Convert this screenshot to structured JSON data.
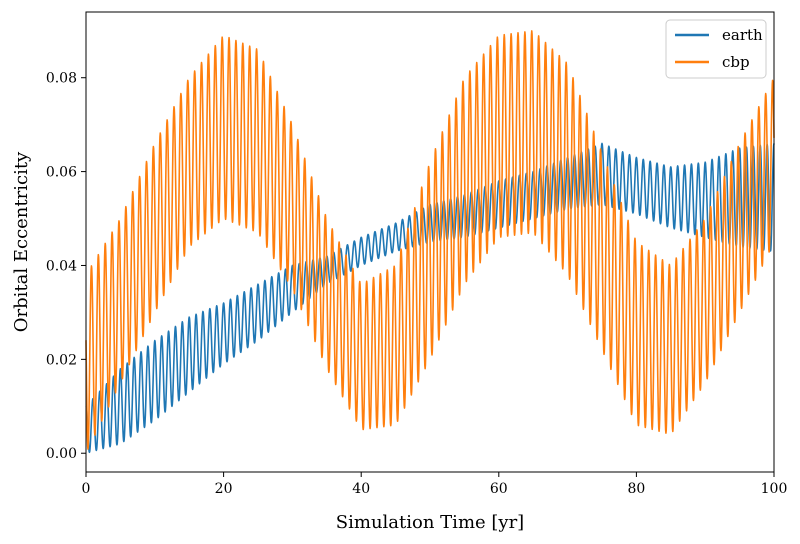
{
  "chart_data": {
    "type": "line",
    "title": "",
    "xlabel": "Simulation Time [yr]",
    "ylabel": "Orbital Eccentricity",
    "xlim": [
      0,
      100
    ],
    "ylim": [
      -0.004,
      0.094
    ],
    "xticks": [
      0,
      20,
      40,
      60,
      80,
      100
    ],
    "xtick_labels": [
      "0",
      "20",
      "40",
      "60",
      "80",
      "100"
    ],
    "yticks": [
      0.0,
      0.02,
      0.04,
      0.06,
      0.08
    ],
    "ytick_labels": [
      "0.00",
      "0.02",
      "0.04",
      "0.06",
      "0.08"
    ],
    "grid": false,
    "legend_position": "top-right",
    "oscillation_period_yr": 1.0,
    "series": [
      {
        "name": "earth",
        "color": "#1f77b4",
        "x": [
          0,
          5,
          10,
          15,
          20,
          25,
          30,
          35,
          40,
          45,
          50,
          55,
          60,
          65,
          70,
          75,
          80,
          85,
          90,
          95,
          100
        ],
        "lower": [
          0.0,
          0.002,
          0.007,
          0.013,
          0.019,
          0.024,
          0.03,
          0.036,
          0.04,
          0.043,
          0.045,
          0.046,
          0.048,
          0.05,
          0.052,
          0.053,
          0.051,
          0.048,
          0.046,
          0.044,
          0.043
        ],
        "upper": [
          0.01,
          0.018,
          0.024,
          0.029,
          0.032,
          0.036,
          0.04,
          0.042,
          0.046,
          0.049,
          0.053,
          0.055,
          0.058,
          0.06,
          0.063,
          0.066,
          0.063,
          0.061,
          0.062,
          0.065,
          0.066
        ]
      },
      {
        "name": "cbp",
        "color": "#ff7f0e",
        "x": [
          0,
          5,
          10,
          15,
          20,
          25,
          30,
          35,
          40,
          45,
          50,
          55,
          60,
          65,
          70,
          75,
          80,
          85,
          90,
          95,
          100
        ],
        "lower": [
          0.0,
          0.015,
          0.03,
          0.044,
          0.05,
          0.047,
          0.035,
          0.018,
          0.005,
          0.006,
          0.02,
          0.036,
          0.046,
          0.047,
          0.038,
          0.022,
          0.006,
          0.004,
          0.015,
          0.03,
          0.045
        ],
        "upper": [
          0.038,
          0.05,
          0.066,
          0.08,
          0.089,
          0.086,
          0.07,
          0.05,
          0.036,
          0.04,
          0.062,
          0.08,
          0.089,
          0.09,
          0.083,
          0.064,
          0.045,
          0.04,
          0.05,
          0.066,
          0.08
        ]
      }
    ]
  }
}
